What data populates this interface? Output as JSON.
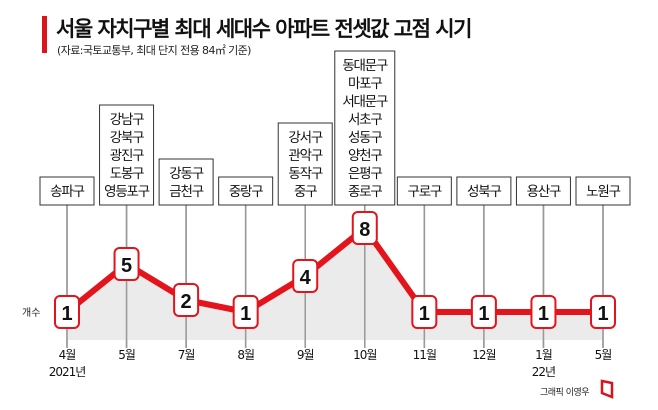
{
  "title": "서울 자치구별 최대 세대수 아파트 전셋값 고점 시기",
  "subtitle": "(자료:국토교통부, 최대 단지 전용 84㎡ 기준)",
  "credit": "그래픽 이영우",
  "chart_data": {
    "type": "line",
    "title": "서울 자치구별 최대 세대수 아파트 전셋값 고점 시기",
    "ylabel": "개수",
    "categories": [
      "4월",
      "5월",
      "7월",
      "8월",
      "9월",
      "10월",
      "11월",
      "12월",
      "1월",
      "5월"
    ],
    "year_labels": {
      "0": "2021년",
      "8": "22년"
    },
    "values": [
      1,
      5,
      2,
      1,
      4,
      8,
      1,
      1,
      1,
      1
    ],
    "districts": [
      [
        "송파구"
      ],
      [
        "강남구",
        "강북구",
        "광진구",
        "도봉구",
        "영등포구"
      ],
      [
        "강동구",
        "금천구"
      ],
      [
        "중랑구"
      ],
      [
        "강서구",
        "관악구",
        "동작구",
        "중구"
      ],
      [
        "동대문구",
        "마포구",
        "서대문구",
        "서초구",
        "성동구",
        "양천구",
        "은평구",
        "종로구"
      ],
      [
        "구로구"
      ],
      [
        "성북구"
      ],
      [
        "용산구"
      ],
      [
        "노원구"
      ]
    ],
    "ylim": [
      0,
      8
    ],
    "colors": {
      "line": "#e3141b",
      "area": "#e6e6e6"
    }
  }
}
